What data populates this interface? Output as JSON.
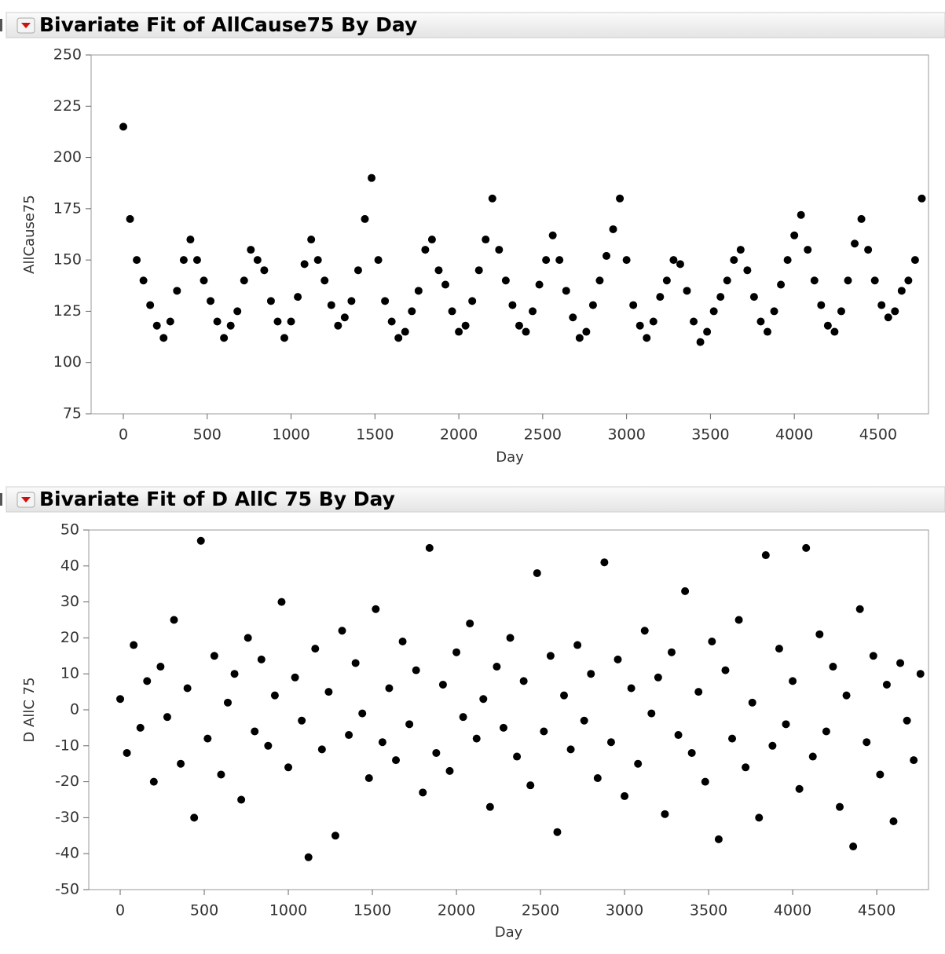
{
  "chart_data": [
    {
      "type": "scatter",
      "title": "Bivariate Fit of AllCause75 By Day",
      "xlabel": "Day",
      "ylabel": "AllCause75",
      "color": "#000000",
      "x": [
        0,
        40,
        80,
        120,
        160,
        200,
        240,
        280,
        320,
        360,
        400,
        440,
        480,
        520,
        560,
        600,
        640,
        680,
        720,
        760,
        800,
        840,
        880,
        920,
        960,
        1000,
        1040,
        1080,
        1120,
        1160,
        1200,
        1240,
        1280,
        1320,
        1360,
        1400,
        1440,
        1480,
        1520,
        1560,
        1600,
        1640,
        1680,
        1720,
        1760,
        1800,
        1840,
        1880,
        1920,
        1960,
        2000,
        2040,
        2080,
        2120,
        2160,
        2200,
        2240,
        2280,
        2320,
        2360,
        2400,
        2440,
        2480,
        2520,
        2560,
        2600,
        2640,
        2680,
        2720,
        2760,
        2800,
        2840,
        2880,
        2920,
        2960,
        3000,
        3040,
        3080,
        3120,
        3160,
        3200,
        3240,
        3280,
        3320,
        3360,
        3400,
        3440,
        3480,
        3520,
        3560,
        3600,
        3640,
        3680,
        3720,
        3760,
        3800,
        3840,
        3880,
        3920,
        3960,
        4000,
        4040,
        4080,
        4120,
        4160,
        4200,
        4240,
        4280,
        4320,
        4360,
        4400,
        4440,
        4480,
        4520,
        4560,
        4600,
        4640,
        4680,
        4720,
        4760
      ],
      "values": [
        215,
        170,
        150,
        140,
        128,
        118,
        112,
        120,
        135,
        150,
        160,
        150,
        140,
        130,
        120,
        112,
        118,
        125,
        140,
        155,
        150,
        145,
        130,
        120,
        112,
        120,
        132,
        148,
        160,
        150,
        140,
        128,
        118,
        122,
        130,
        145,
        170,
        190,
        150,
        130,
        120,
        112,
        115,
        125,
        135,
        155,
        160,
        145,
        138,
        125,
        115,
        118,
        130,
        145,
        160,
        180,
        155,
        140,
        128,
        118,
        115,
        125,
        138,
        150,
        162,
        150,
        135,
        122,
        112,
        115,
        128,
        140,
        152,
        165,
        180,
        150,
        128,
        118,
        112,
        120,
        132,
        140,
        150,
        148,
        135,
        120,
        110,
        115,
        125,
        132,
        140,
        150,
        155,
        145,
        132,
        120,
        115,
        125,
        138,
        150,
        162,
        172,
        155,
        140,
        128,
        118,
        115,
        125,
        140,
        158,
        170,
        155,
        140,
        128,
        122,
        125,
        135,
        140,
        150,
        180
      ],
      "xlim": [
        -192,
        4800
      ],
      "ylim": [
        75,
        250
      ],
      "xticks": [
        0,
        500,
        1000,
        1500,
        2000,
        2500,
        3000,
        3500,
        4000,
        4500
      ],
      "yticks": [
        75,
        100,
        125,
        150,
        175,
        200,
        225,
        250
      ]
    },
    {
      "type": "scatter",
      "title": "Bivariate Fit of D AllC 75 By Day",
      "xlabel": "Day",
      "ylabel": "D AllC 75",
      "color": "#000000",
      "x": [
        0,
        40,
        80,
        120,
        160,
        200,
        240,
        280,
        320,
        360,
        400,
        440,
        480,
        520,
        560,
        600,
        640,
        680,
        720,
        760,
        800,
        840,
        880,
        920,
        960,
        1000,
        1040,
        1080,
        1120,
        1160,
        1200,
        1240,
        1280,
        1320,
        1360,
        1400,
        1440,
        1480,
        1520,
        1560,
        1600,
        1640,
        1680,
        1720,
        1760,
        1800,
        1840,
        1880,
        1920,
        1960,
        2000,
        2040,
        2080,
        2120,
        2160,
        2200,
        2240,
        2280,
        2320,
        2360,
        2400,
        2440,
        2480,
        2520,
        2560,
        2600,
        2640,
        2680,
        2720,
        2760,
        2800,
        2840,
        2880,
        2920,
        2960,
        3000,
        3040,
        3080,
        3120,
        3160,
        3200,
        3240,
        3280,
        3320,
        3360,
        3400,
        3440,
        3480,
        3520,
        3560,
        3600,
        3640,
        3680,
        3720,
        3760,
        3800,
        3840,
        3880,
        3920,
        3960,
        4000,
        4040,
        4080,
        4120,
        4160,
        4200,
        4240,
        4280,
        4320,
        4360,
        4400,
        4440,
        4480,
        4520,
        4560,
        4600,
        4640,
        4680,
        4720,
        4760
      ],
      "values": [
        3,
        -12,
        18,
        -5,
        8,
        -20,
        12,
        -2,
        25,
        -15,
        6,
        -30,
        47,
        -8,
        15,
        -18,
        2,
        10,
        -25,
        20,
        -6,
        14,
        -10,
        4,
        30,
        -16,
        9,
        -3,
        -41,
        17,
        -11,
        5,
        -35,
        22,
        -7,
        13,
        -1,
        -19,
        28,
        -9,
        6,
        -14,
        19,
        -4,
        11,
        -23,
        45,
        -12,
        7,
        -17,
        16,
        -2,
        24,
        -8,
        3,
        -27,
        12,
        -5,
        20,
        -13,
        8,
        -21,
        38,
        -6,
        15,
        -34,
        4,
        -11,
        18,
        -3,
        10,
        -19,
        41,
        -9,
        14,
        -24,
        6,
        -15,
        22,
        -1,
        9,
        -29,
        16,
        -7,
        33,
        -12,
        5,
        -20,
        19,
        -36,
        11,
        -8,
        25,
        -16,
        2,
        -30,
        43,
        -10,
        17,
        -4,
        8,
        -22,
        45,
        -13,
        21,
        -6,
        12,
        -27,
        4,
        -38,
        28,
        -9,
        15,
        -18,
        7,
        -31,
        13,
        -3,
        -14,
        10
      ],
      "xlim": [
        -187,
        4808
      ],
      "ylim": [
        -50,
        50
      ],
      "xticks": [
        0,
        500,
        1000,
        1500,
        2000,
        2500,
        3000,
        3500,
        4000,
        4500
      ],
      "yticks": [
        -50,
        -40,
        -30,
        -20,
        -10,
        0,
        10,
        20,
        30,
        40,
        50
      ]
    }
  ]
}
